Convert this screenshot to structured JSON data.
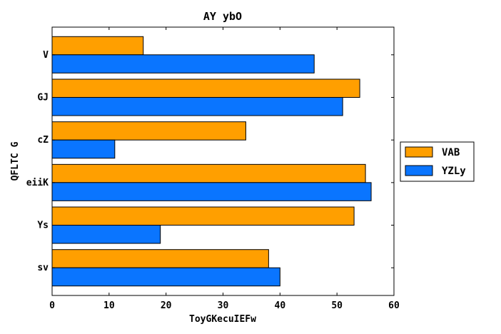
{
  "chart_data": {
    "type": "bar",
    "orientation": "horizontal",
    "title": "AY ybO",
    "xlabel": "ToyGKecuIEFw",
    "ylabel": "QFLTC G",
    "categories": [
      "V",
      "GJ",
      "cZ",
      "eiiK",
      "Ys",
      "sv"
    ],
    "series": [
      {
        "name": "VAB",
        "values": [
          16,
          54,
          34,
          55,
          53,
          38
        ],
        "color": "#ff9f00"
      },
      {
        "name": "YZLy",
        "values": [
          46,
          51,
          11,
          56,
          19,
          40
        ],
        "color": "#0a75ff"
      }
    ],
    "xlim": [
      0,
      60
    ],
    "xticks": [
      "0",
      "10",
      "20",
      "30",
      "40",
      "50",
      "60"
    ],
    "grid": false,
    "legend_position": "right"
  }
}
